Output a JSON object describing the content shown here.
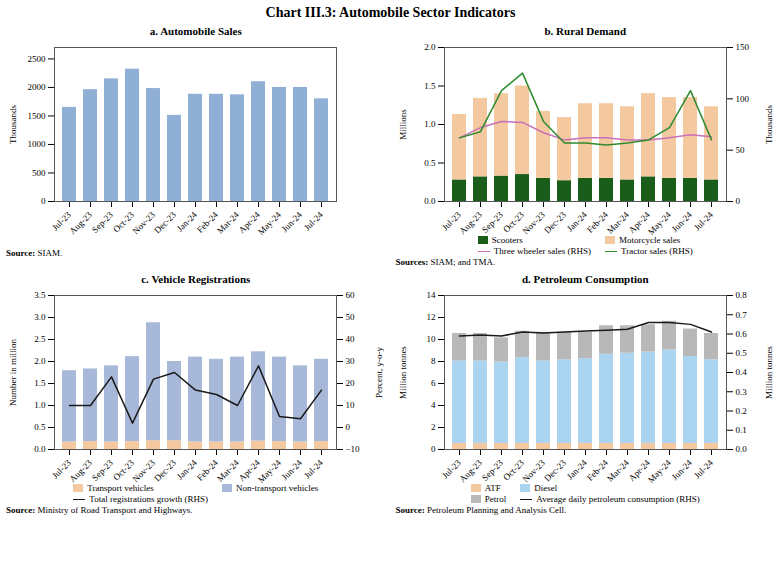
{
  "title": "Chart III.3: Automobile Sector Indicators",
  "chart_data": [
    {
      "type": "bar",
      "title": "a. Automobile Sales",
      "categories": [
        "Jul-23",
        "Aug-23",
        "Sep-23",
        "Oct-23",
        "Nov-23",
        "Dec-23",
        "Jan-24",
        "Feb-24",
        "Mar-24",
        "Apr-24",
        "May-24",
        "Jun-24",
        "Jul-24"
      ],
      "values": [
        1650,
        1960,
        2150,
        2320,
        1980,
        1510,
        1880,
        1880,
        1870,
        2100,
        2000,
        2000,
        1800
      ],
      "color": "#8fafd4",
      "ylabel": "Thousands",
      "ylim": [
        0,
        2700
      ],
      "yticks": [
        0,
        500,
        1000,
        1500,
        2000,
        2500
      ],
      "grid": false,
      "annotations": [
        "Source: SIAM."
      ]
    },
    {
      "type": "bar",
      "title": "b. Rural Demand",
      "categories": [
        "Jul-23",
        "Aug-23",
        "Sep-23",
        "Oct-23",
        "Nov-23",
        "Dec-23",
        "Jan-24",
        "Feb-24",
        "Mar-24",
        "Apr-24",
        "May-24",
        "Jun-24",
        "Jul-24"
      ],
      "stacked": true,
      "series": [
        {
          "name": "Scooters",
          "type": "bar",
          "color": "#1a5c1a",
          "values": [
            0.28,
            0.32,
            0.33,
            0.35,
            0.3,
            0.27,
            0.3,
            0.3,
            0.28,
            0.32,
            0.3,
            0.3,
            0.28
          ]
        },
        {
          "name": "Motorcycle sales",
          "type": "bar",
          "color": "#f5c9a0",
          "values": [
            0.85,
            1.02,
            1.07,
            1.15,
            0.87,
            0.82,
            0.97,
            0.97,
            0.95,
            1.08,
            1.05,
            1.05,
            0.95
          ]
        },
        {
          "name": "Three wheeler sales (RHS)",
          "type": "line",
          "axis": "y2",
          "color": "#c870b8",
          "values": [
            62,
            72,
            78,
            77,
            67,
            60,
            62,
            62,
            60,
            60,
            62,
            65,
            63
          ]
        },
        {
          "name": "Tractor sales (RHS)",
          "type": "line",
          "axis": "y2",
          "color": "#2e8b2e",
          "values": [
            62,
            68,
            108,
            125,
            78,
            57,
            57,
            55,
            57,
            60,
            72,
            108,
            60
          ]
        }
      ],
      "ylabel": "Millions",
      "y2label": "Thousands",
      "ylim": [
        0,
        2.0
      ],
      "yticks": [
        {
          "value": 0,
          "label": "0.0"
        },
        0.5,
        {
          "value": 1,
          "label": "1.0"
        },
        1.5,
        {
          "value": 2,
          "label": "2.0"
        }
      ],
      "y2lim": [
        0,
        150
      ],
      "y2ticks": [
        0,
        50,
        100,
        150
      ],
      "grid": false,
      "legend": "bottom",
      "annotations": [
        "Sources: SIAM; and TMA."
      ]
    },
    {
      "type": "bar",
      "title": "c. Vehicle Registrations",
      "categories": [
        "Jul-23",
        "Aug-23",
        "Sep-23",
        "Oct-23",
        "Nov-23",
        "Dec-23",
        "Jan-24",
        "Feb-24",
        "Mar-24",
        "Apr-24",
        "May-24",
        "Jun-24",
        "Jul-24"
      ],
      "stacked": true,
      "series": [
        {
          "name": "Transport vehicles",
          "type": "bar",
          "color": "#f5c9a0",
          "values": [
            0.17,
            0.18,
            0.17,
            0.18,
            0.2,
            0.2,
            0.17,
            0.17,
            0.17,
            0.19,
            0.18,
            0.17,
            0.18
          ]
        },
        {
          "name": "Non-transport vehicles",
          "type": "bar",
          "color": "#a8b8d8",
          "values": [
            1.62,
            1.65,
            1.73,
            1.93,
            2.68,
            1.8,
            1.93,
            1.88,
            1.93,
            2.03,
            1.92,
            1.73,
            1.87
          ]
        },
        {
          "name": "Total registrations growth (RHS)",
          "type": "line",
          "axis": "y2",
          "color": "#1a1a1a",
          "values": [
            10,
            10,
            23,
            2,
            22,
            25,
            17,
            15,
            10,
            28,
            5,
            4,
            17
          ]
        }
      ],
      "ylabel": "Number in million",
      "y2label": "Percent, y-o-y",
      "ylim": [
        0,
        3.5
      ],
      "yticks": [
        {
          "value": 0,
          "label": "0.0"
        },
        0.5,
        {
          "value": 1,
          "label": "1.0"
        },
        1.5,
        {
          "value": 2,
          "label": "2.0"
        },
        2.5,
        {
          "value": 3,
          "label": "3.0"
        },
        3.5
      ],
      "y2lim": [
        -10,
        60
      ],
      "y2ticks": [
        -10,
        0,
        10,
        20,
        30,
        40,
        50,
        60
      ],
      "grid": false,
      "legend": "bottom",
      "annotations": [
        "Source: Ministry of Road Transport and Highways."
      ]
    },
    {
      "type": "bar",
      "title": "d. Petroleum Consumption",
      "categories": [
        "Jul-23",
        "Aug-23",
        "Sep-23",
        "Oct-23",
        "Nov-23",
        "Dec-23",
        "Jan-24",
        "Feb-24",
        "Mar-24",
        "Apr-24",
        "May-24",
        "Jun-24",
        "Jul-24"
      ],
      "stacked": true,
      "series": [
        {
          "name": "ATF",
          "type": "bar",
          "color": "#f5c9a0",
          "values": [
            0.55,
            0.55,
            0.55,
            0.55,
            0.55,
            0.55,
            0.55,
            0.55,
            0.55,
            0.55,
            0.55,
            0.55,
            0.55
          ]
        },
        {
          "name": "Diesel",
          "type": "bar",
          "color": "#aad4f0",
          "values": [
            7.5,
            7.5,
            7.4,
            7.8,
            7.5,
            7.6,
            7.7,
            8.1,
            8.2,
            8.3,
            8.5,
            7.9,
            7.6
          ]
        },
        {
          "name": "Petrol",
          "type": "bar",
          "color": "#b8b8b8",
          "values": [
            2.5,
            2.5,
            2.2,
            2.4,
            2.6,
            2.5,
            2.4,
            2.6,
            2.5,
            2.5,
            2.6,
            2.5,
            2.4
          ]
        },
        {
          "name": "Average daily petroleum consumption (RHS)",
          "type": "line",
          "axis": "y2",
          "color": "#1a1a1a",
          "values": [
            0.59,
            0.595,
            0.59,
            0.61,
            0.605,
            0.61,
            0.615,
            0.62,
            0.625,
            0.66,
            0.66,
            0.65,
            0.61
          ]
        }
      ],
      "ylabel": "Million tonnes",
      "y2label": "Million tonnes",
      "ylim": [
        0,
        14
      ],
      "yticks": [
        0,
        2,
        4,
        6,
        8,
        10,
        12,
        14
      ],
      "y2lim": [
        0,
        0.8
      ],
      "y2ticks": [
        {
          "value": 0,
          "label": "0.0"
        },
        0.1,
        0.2,
        0.3,
        0.4,
        0.5,
        0.6,
        0.7,
        0.8
      ],
      "grid": false,
      "legend": "bottom",
      "annotations": [
        "Source: Petroleum Planning and Analysis Cell."
      ]
    }
  ]
}
